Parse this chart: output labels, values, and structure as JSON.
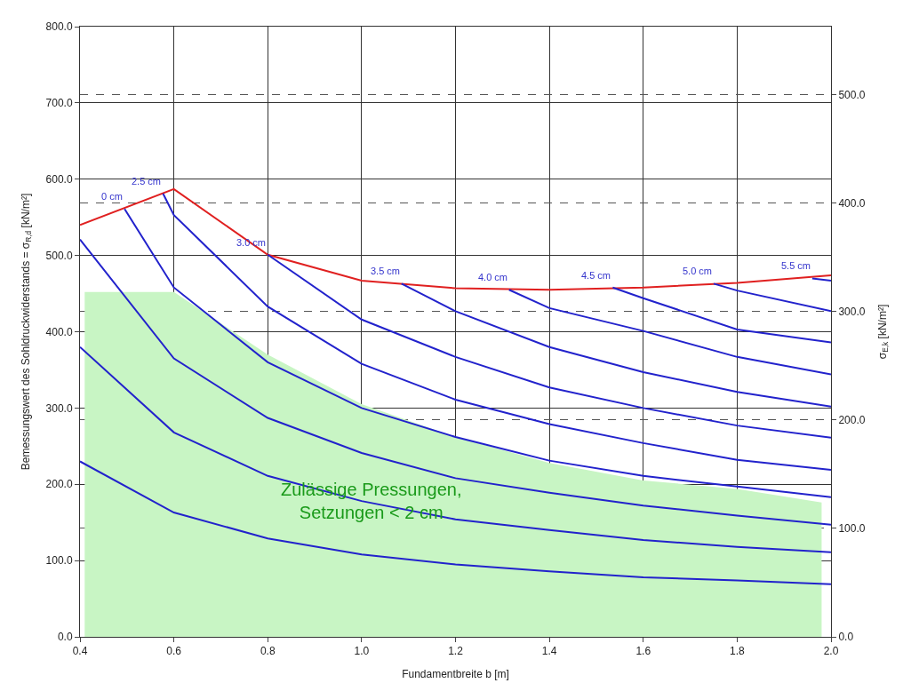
{
  "chart_data": {
    "type": "line",
    "xlabel": "Fundamentbreite b [m]",
    "ylabel": "Bemessungswert des Sohldruckwiderstands = σ$_{R,d}$ [kN/m²]",
    "y2label": "σ$_{E,k}$ [kN/m²]",
    "xlim": [
      0.4,
      2.0
    ],
    "xticks": [
      0.4,
      0.6,
      0.8,
      {
        "value": 1.0,
        "label": "1.0"
      },
      1.2,
      1.4,
      1.6,
      1.8,
      {
        "value": 2.0,
        "label": "2.0"
      }
    ],
    "ylim": [
      0,
      800
    ],
    "yticks": [
      {
        "value": 0,
        "label": "0.0"
      },
      {
        "value": 100,
        "label": "100.0"
      },
      {
        "value": 200,
        "label": "200.0"
      },
      {
        "value": 300,
        "label": "300.0"
      },
      {
        "value": 400,
        "label": "400.0"
      },
      {
        "value": 500,
        "label": "500.0"
      },
      {
        "value": 600,
        "label": "600.0"
      },
      {
        "value": 700,
        "label": "700.0"
      },
      {
        "value": 800,
        "label": "800.0"
      }
    ],
    "y2lim": [
      0,
      563
    ],
    "y2ticks": [
      {
        "value": 0,
        "label": "0.0"
      },
      {
        "value": 100,
        "label": "100.0"
      },
      {
        "value": 200,
        "label": "200.0"
      },
      {
        "value": 300,
        "label": "300.0"
      },
      {
        "value": 400,
        "label": "400.0"
      },
      {
        "value": 500,
        "label": "500.0"
      }
    ],
    "grid": true,
    "marker": "none",
    "series": [
      {
        "type": "area",
        "color": "#c8f5c4",
        "x": [
          0.41,
          0.6,
          0.8,
          1.0,
          1.2,
          1.4,
          1.6,
          1.8,
          1.98
        ],
        "values": [
          452,
          452,
          370,
          305,
          262,
          228,
          205,
          194,
          176
        ]
      },
      {
        "color": "#e02020",
        "x": [
          0.4,
          0.6,
          0.8,
          1.0,
          1.2,
          1.4,
          1.6,
          1.8,
          2.0
        ],
        "values": [
          540,
          587,
          501,
          467,
          457,
          455,
          458,
          464,
          474
        ]
      },
      {
        "color": "#2222cc",
        "x": [
          0.4,
          0.6,
          0.8,
          1.0,
          1.2,
          1.4,
          1.6,
          1.8,
          2.0
        ],
        "values": [
          230,
          163,
          129,
          108,
          95,
          86,
          78,
          74,
          69
        ]
      },
      {
        "color": "#2222cc",
        "x": [
          0.4,
          0.6,
          0.8,
          1.0,
          1.2,
          1.4,
          1.6,
          1.8,
          2.0
        ],
        "values": [
          380,
          268,
          211,
          178,
          154,
          140,
          127,
          118,
          111
        ]
      },
      {
        "color": "#2222cc",
        "x": [
          0.4,
          0.6,
          0.8,
          1.0,
          1.2,
          1.4,
          1.6,
          1.8,
          2.0
        ],
        "values": [
          521,
          365,
          287,
          241,
          208,
          189,
          172,
          159,
          147
        ]
      },
      {
        "color": "#2222cc",
        "x": [
          0.495,
          0.6,
          0.8,
          1.0,
          1.2,
          1.4,
          1.6,
          1.8,
          2.0
        ],
        "values": [
          561,
          458,
          360,
          300,
          262,
          231,
          211,
          197,
          183
        ]
      },
      {
        "color": "#2222cc",
        "x": [
          0.577,
          0.6,
          0.8,
          1.0,
          1.2,
          1.4,
          1.6,
          1.8,
          2.0
        ],
        "values": [
          581,
          553,
          433,
          358,
          311,
          279,
          254,
          232,
          219
        ]
      },
      {
        "color": "#2222cc",
        "x": [
          0.8,
          1.0,
          1.2,
          1.4,
          1.6,
          1.8,
          2.0
        ],
        "values": [
          501,
          416,
          367,
          327,
          300,
          277,
          261
        ]
      },
      {
        "color": "#2222cc",
        "x": [
          1.085,
          1.2,
          1.4,
          1.6,
          1.8,
          2.0
        ],
        "values": [
          463,
          427,
          380,
          347,
          321,
          302
        ]
      },
      {
        "color": "#2222cc",
        "x": [
          1.314,
          1.4,
          1.6,
          1.8,
          2.0
        ],
        "values": [
          455,
          431,
          401,
          367,
          344
        ]
      },
      {
        "color": "#2222cc",
        "x": [
          1.535,
          1.6,
          1.8,
          2.0
        ],
        "values": [
          458,
          444,
          403,
          386
        ]
      },
      {
        "color": "#2222cc",
        "x": [
          1.75,
          1.8,
          2.0
        ],
        "values": [
          463,
          454,
          427
        ]
      },
      {
        "color": "#2222cc",
        "x": [
          1.96,
          2.0
        ],
        "values": [
          470,
          467
        ]
      }
    ],
    "annotations": [
      {
        "text": "Zulässige Pressungen,\nSetzungen < 2 cm",
        "x": 1.02,
        "y": 178
      },
      {
        "text": "0 cm",
        "x": 0.495,
        "y": 561
      },
      {
        "text": "2.5 cm",
        "x": 0.577,
        "y": 581
      },
      {
        "text": "3.0 cm",
        "x": 0.8,
        "y": 501
      },
      {
        "text": "3.5 cm",
        "x": 1.085,
        "y": 463
      },
      {
        "text": "4.0 cm",
        "x": 1.314,
        "y": 455
      },
      {
        "text": "4.5 cm",
        "x": 1.535,
        "y": 458
      },
      {
        "text": "5.0 cm",
        "x": 1.75,
        "y": 463
      },
      {
        "text": "5.5 cm",
        "x": 1.96,
        "y": 470
      }
    ]
  }
}
